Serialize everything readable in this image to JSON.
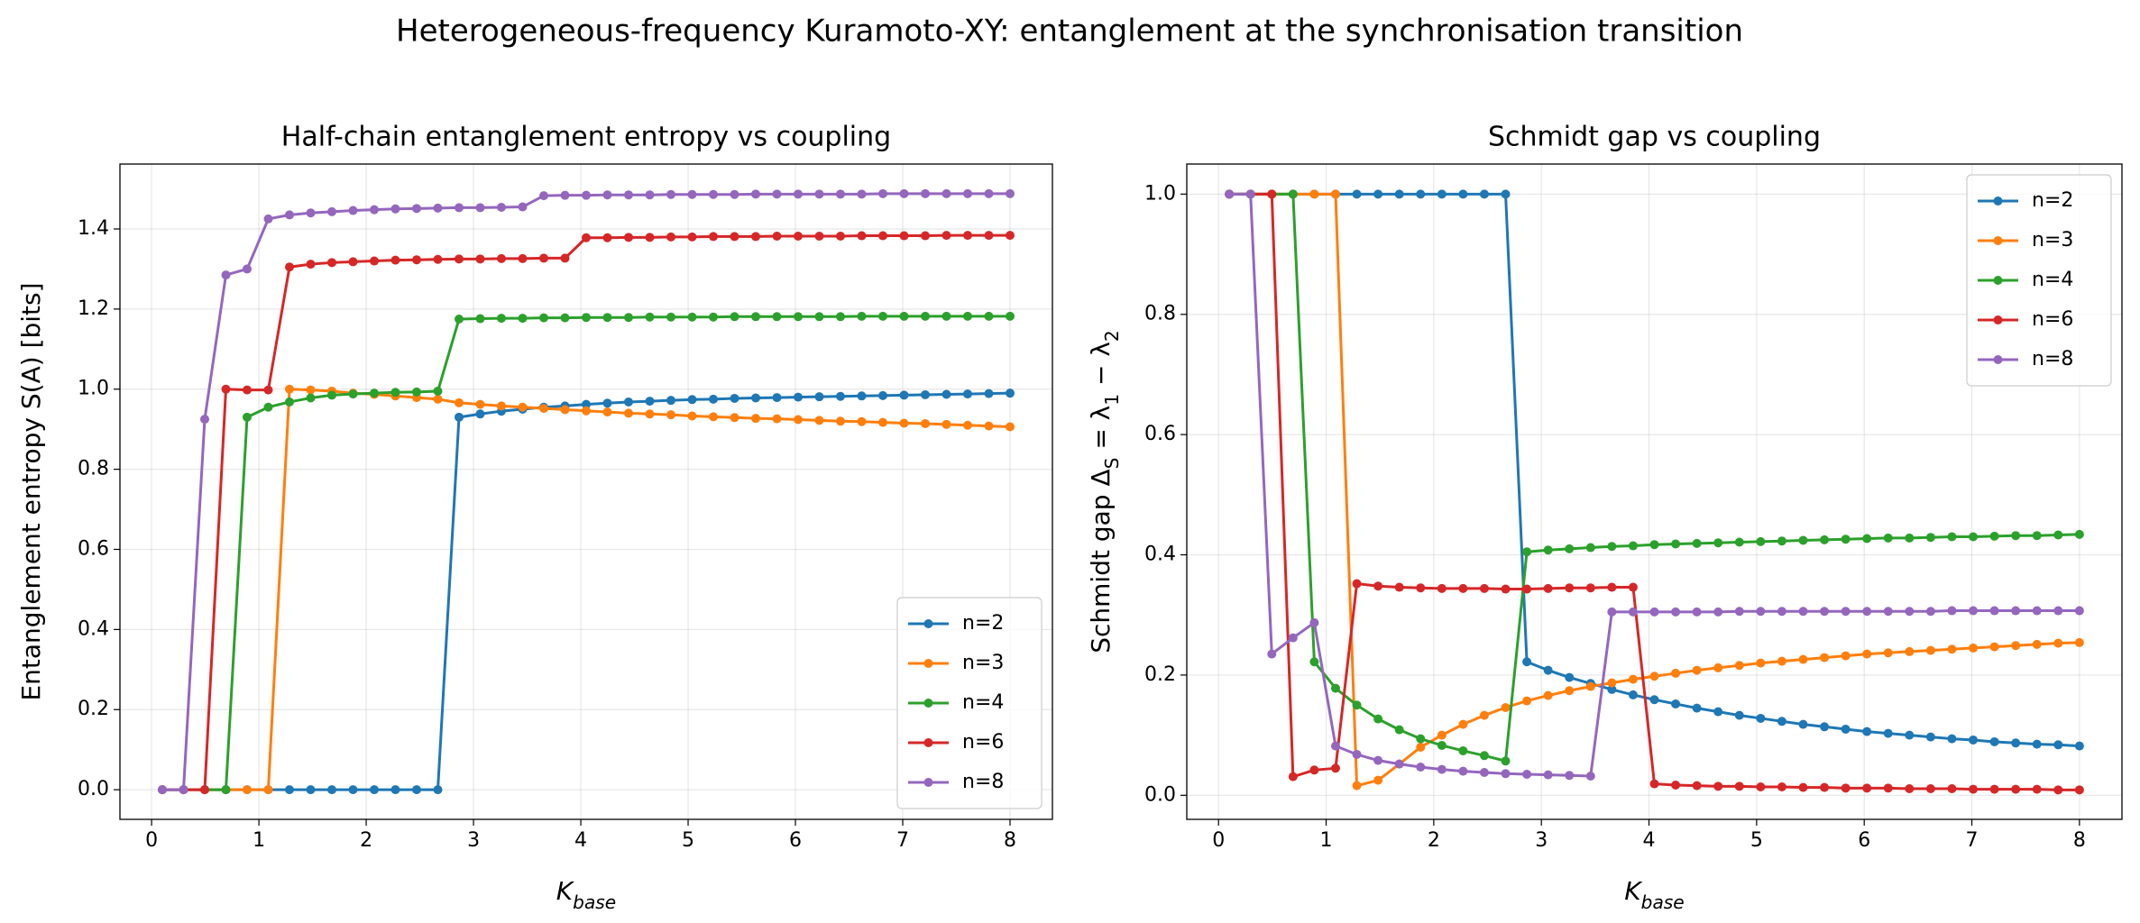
{
  "title": "Heterogeneous-frequency Kuramoto-XY: entanglement at the synchronisation transition",
  "chart_data": [
    {
      "type": "line",
      "title": "Half-chain entanglement entropy vs coupling",
      "xlabel": [
        {
          "text": "K"
        },
        {
          "sub": "base"
        }
      ],
      "ylabel": [
        {
          "text": "Entanglement entropy S(A) [bits]"
        }
      ],
      "x": [
        0.1,
        0.2975,
        0.495,
        0.6925,
        0.89,
        1.0875,
        1.285,
        1.4825,
        1.68,
        1.8775,
        2.075,
        2.2725,
        2.47,
        2.6675,
        2.865,
        3.0625,
        3.26,
        3.4575,
        3.655,
        3.8525,
        4.05,
        4.2475,
        4.445,
        4.6425,
        4.84,
        5.0375,
        5.235,
        5.4325,
        5.63,
        5.8275,
        6.025,
        6.2225,
        6.42,
        6.6175,
        6.815,
        7.0125,
        7.21,
        7.4075,
        7.605,
        7.8025,
        8.0
      ],
      "xlim": [
        -0.295,
        8.395
      ],
      "xticks": [
        0,
        1,
        2,
        3,
        4,
        5,
        6,
        7,
        8
      ],
      "ylim": [
        -0.074,
        1.562
      ],
      "yticks": [
        {
          "value": 0,
          "label": "0.0"
        },
        0.2,
        0.4,
        0.6,
        0.8,
        {
          "value": 1,
          "label": "1.0"
        },
        1.2,
        1.4
      ],
      "grid": true,
      "legend": "lower right",
      "series": [
        {
          "name": "n=2",
          "color": "#1f77b4",
          "values": [
            0,
            0,
            0,
            0,
            0,
            0,
            0,
            0,
            0,
            0,
            0,
            0,
            0,
            0,
            0.93,
            0.938,
            0.945,
            0.95,
            0.955,
            0.958,
            0.962,
            0.965,
            0.968,
            0.97,
            0.972,
            0.974,
            0.975,
            0.977,
            0.978,
            0.979,
            0.98,
            0.981,
            0.982,
            0.983,
            0.984,
            0.985,
            0.986,
            0.987,
            0.988,
            0.989,
            0.99
          ]
        },
        {
          "name": "n=3",
          "color": "#ff7f0e",
          "values": [
            0,
            0,
            0,
            0,
            0,
            0,
            1.0,
            0.998,
            0.995,
            0.99,
            0.987,
            0.983,
            0.979,
            0.975,
            0.966,
            0.962,
            0.958,
            0.955,
            0.952,
            0.949,
            0.946,
            0.943,
            0.94,
            0.938,
            0.936,
            0.933,
            0.931,
            0.929,
            0.927,
            0.926,
            0.924,
            0.922,
            0.92,
            0.919,
            0.917,
            0.915,
            0.914,
            0.912,
            0.91,
            0.908,
            0.906
          ]
        },
        {
          "name": "n=4",
          "color": "#2ca02c",
          "values": [
            0,
            0,
            0,
            0,
            0.93,
            0.955,
            0.968,
            0.978,
            0.985,
            0.988,
            0.99,
            0.992,
            0.993,
            0.995,
            1.175,
            1.176,
            1.177,
            1.177,
            1.178,
            1.178,
            1.179,
            1.179,
            1.179,
            1.18,
            1.18,
            1.18,
            1.18,
            1.181,
            1.181,
            1.181,
            1.181,
            1.181,
            1.181,
            1.182,
            1.182,
            1.182,
            1.182,
            1.182,
            1.182,
            1.182,
            1.182
          ]
        },
        {
          "name": "n=6",
          "color": "#d62728",
          "values": [
            0,
            0,
            0,
            1.0,
            0.998,
            0.998,
            1.305,
            1.312,
            1.316,
            1.318,
            1.32,
            1.322,
            1.323,
            1.324,
            1.325,
            1.325,
            1.326,
            1.326,
            1.327,
            1.327,
            1.378,
            1.378,
            1.379,
            1.379,
            1.38,
            1.38,
            1.381,
            1.381,
            1.381,
            1.382,
            1.382,
            1.382,
            1.382,
            1.383,
            1.383,
            1.383,
            1.383,
            1.384,
            1.384,
            1.384,
            1.384
          ]
        },
        {
          "name": "n=8",
          "color": "#9467bd",
          "values": [
            0,
            0,
            0.925,
            1.285,
            1.3,
            1.425,
            1.435,
            1.44,
            1.443,
            1.446,
            1.448,
            1.45,
            1.451,
            1.452,
            1.453,
            1.453,
            1.454,
            1.455,
            1.483,
            1.484,
            1.484,
            1.485,
            1.485,
            1.485,
            1.486,
            1.486,
            1.486,
            1.486,
            1.487,
            1.487,
            1.487,
            1.487,
            1.487,
            1.487,
            1.488,
            1.488,
            1.488,
            1.488,
            1.488,
            1.488,
            1.488
          ]
        }
      ]
    },
    {
      "type": "line",
      "title": "Schmidt gap vs coupling",
      "xlabel": [
        {
          "text": "K"
        },
        {
          "sub": "base"
        }
      ],
      "ylabel": [
        {
          "text": "Schmidt gap Δ"
        },
        {
          "sub": "S"
        },
        {
          "text": " = λ"
        },
        {
          "sub": "1"
        },
        {
          "text": " − λ"
        },
        {
          "sub": "2"
        }
      ],
      "x": [
        0.1,
        0.2975,
        0.495,
        0.6925,
        0.89,
        1.0875,
        1.285,
        1.4825,
        1.68,
        1.8775,
        2.075,
        2.2725,
        2.47,
        2.6675,
        2.865,
        3.0625,
        3.26,
        3.4575,
        3.655,
        3.8525,
        4.05,
        4.2475,
        4.445,
        4.6425,
        4.84,
        5.0375,
        5.235,
        5.4325,
        5.63,
        5.8275,
        6.025,
        6.2225,
        6.42,
        6.6175,
        6.815,
        7.0125,
        7.21,
        7.4075,
        7.605,
        7.8025,
        8.0
      ],
      "xlim": [
        -0.295,
        8.395
      ],
      "xticks": [
        0,
        1,
        2,
        3,
        4,
        5,
        6,
        7,
        8
      ],
      "ylim": [
        -0.04,
        1.05
      ],
      "yticks": [
        {
          "value": 0,
          "label": "0.0"
        },
        0.2,
        0.4,
        0.6,
        0.8,
        {
          "value": 1,
          "label": "1.0"
        }
      ],
      "grid": true,
      "legend": "upper right",
      "series": [
        {
          "name": "n=2",
          "color": "#1f77b4",
          "values": [
            1,
            1,
            1,
            1,
            1,
            1,
            1,
            1,
            1,
            1,
            1,
            1,
            1,
            1,
            0.222,
            0.208,
            0.196,
            0.186,
            0.176,
            0.167,
            0.159,
            0.152,
            0.145,
            0.139,
            0.133,
            0.128,
            0.123,
            0.118,
            0.114,
            0.11,
            0.106,
            0.103,
            0.1,
            0.097,
            0.094,
            0.092,
            0.089,
            0.087,
            0.085,
            0.084,
            0.082
          ]
        },
        {
          "name": "n=3",
          "color": "#ff7f0e",
          "values": [
            1,
            1,
            1,
            1,
            1,
            1,
            0.016,
            0.025,
            0.052,
            0.08,
            0.1,
            0.118,
            0.133,
            0.146,
            0.157,
            0.166,
            0.174,
            0.181,
            0.187,
            0.193,
            0.198,
            0.203,
            0.208,
            0.212,
            0.216,
            0.22,
            0.223,
            0.226,
            0.229,
            0.232,
            0.235,
            0.237,
            0.239,
            0.241,
            0.243,
            0.245,
            0.247,
            0.249,
            0.251,
            0.253,
            0.254
          ]
        },
        {
          "name": "n=4",
          "color": "#2ca02c",
          "values": [
            1,
            1,
            1,
            1,
            0.222,
            0.178,
            0.15,
            0.127,
            0.109,
            0.094,
            0.083,
            0.074,
            0.066,
            0.057,
            0.405,
            0.408,
            0.41,
            0.412,
            0.414,
            0.415,
            0.417,
            0.418,
            0.419,
            0.42,
            0.421,
            0.422,
            0.423,
            0.424,
            0.425,
            0.426,
            0.427,
            0.428,
            0.428,
            0.429,
            0.43,
            0.43,
            0.431,
            0.432,
            0.432,
            0.433,
            0.434
          ]
        },
        {
          "name": "n=6",
          "color": "#d62728",
          "values": [
            1,
            1,
            1,
            0.031,
            0.042,
            0.045,
            0.352,
            0.348,
            0.346,
            0.345,
            0.344,
            0.344,
            0.344,
            0.343,
            0.343,
            0.344,
            0.345,
            0.345,
            0.346,
            0.346,
            0.019,
            0.017,
            0.016,
            0.015,
            0.015,
            0.014,
            0.014,
            0.013,
            0.013,
            0.012,
            0.012,
            0.012,
            0.011,
            0.011,
            0.011,
            0.01,
            0.01,
            0.01,
            0.01,
            0.009,
            0.009
          ]
        },
        {
          "name": "n=8",
          "color": "#9467bd",
          "values": [
            1,
            1,
            0.235,
            0.262,
            0.287,
            0.082,
            0.068,
            0.058,
            0.052,
            0.047,
            0.043,
            0.04,
            0.038,
            0.036,
            0.035,
            0.034,
            0.033,
            0.032,
            0.305,
            0.305,
            0.305,
            0.305,
            0.305,
            0.305,
            0.306,
            0.306,
            0.306,
            0.306,
            0.306,
            0.306,
            0.306,
            0.306,
            0.306,
            0.306,
            0.307,
            0.307,
            0.307,
            0.307,
            0.307,
            0.307,
            0.307
          ]
        }
      ]
    }
  ]
}
